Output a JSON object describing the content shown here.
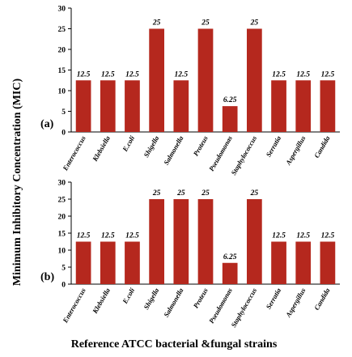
{
  "figure": {
    "ylabel": "Minimum Inhibitory Concentration (MIC)",
    "xlabel": "Reference ATCC bacterial &fungal strains"
  },
  "chart_data": [
    {
      "type": "bar",
      "panel_label": "(a)",
      "categories": [
        "Enterococcus",
        "Klebsiella",
        "E.coli",
        "Shigella",
        "Salmonella",
        "Proteus",
        "Pseudomonas",
        "Staphylococcus",
        "Serratia",
        "Aspergillus",
        "Candida"
      ],
      "values": [
        12.5,
        12.5,
        12.5,
        25,
        12.5,
        25,
        6.25,
        25,
        12.5,
        12.5,
        12.5
      ],
      "data_labels": [
        "12.5",
        "12.5",
        "12.5",
        "25",
        "12.5",
        "25",
        "6.25",
        "25",
        "12.5",
        "12.5",
        "12.5"
      ],
      "ylim": [
        0,
        30
      ],
      "yticks": [
        "0",
        "5",
        "10",
        "15",
        "20",
        "25",
        "30"
      ],
      "grid": false,
      "bar_color": "#b5281e"
    },
    {
      "type": "bar",
      "panel_label": "(b)",
      "categories": [
        "Enterococcus",
        "Klebsiella",
        "E.coli",
        "Shigella",
        "Salmonella",
        "Proteus",
        "Pseudomonas",
        "Staphylococcus",
        "Serratia",
        "Aspergillus",
        "Candida"
      ],
      "values": [
        12.5,
        12.5,
        12.5,
        25,
        25,
        25,
        6.25,
        25,
        12.5,
        12.5,
        12.5
      ],
      "data_labels": [
        "12.5",
        "12.5",
        "12.5",
        "25",
        "25",
        "25",
        "6.25",
        "25",
        "12.5",
        "12.5",
        "12.5"
      ],
      "ylim": [
        0,
        30
      ],
      "yticks": [
        "0",
        "5",
        "10",
        "15",
        "20",
        "25",
        "30"
      ],
      "grid": false,
      "bar_color": "#b5281e"
    }
  ]
}
